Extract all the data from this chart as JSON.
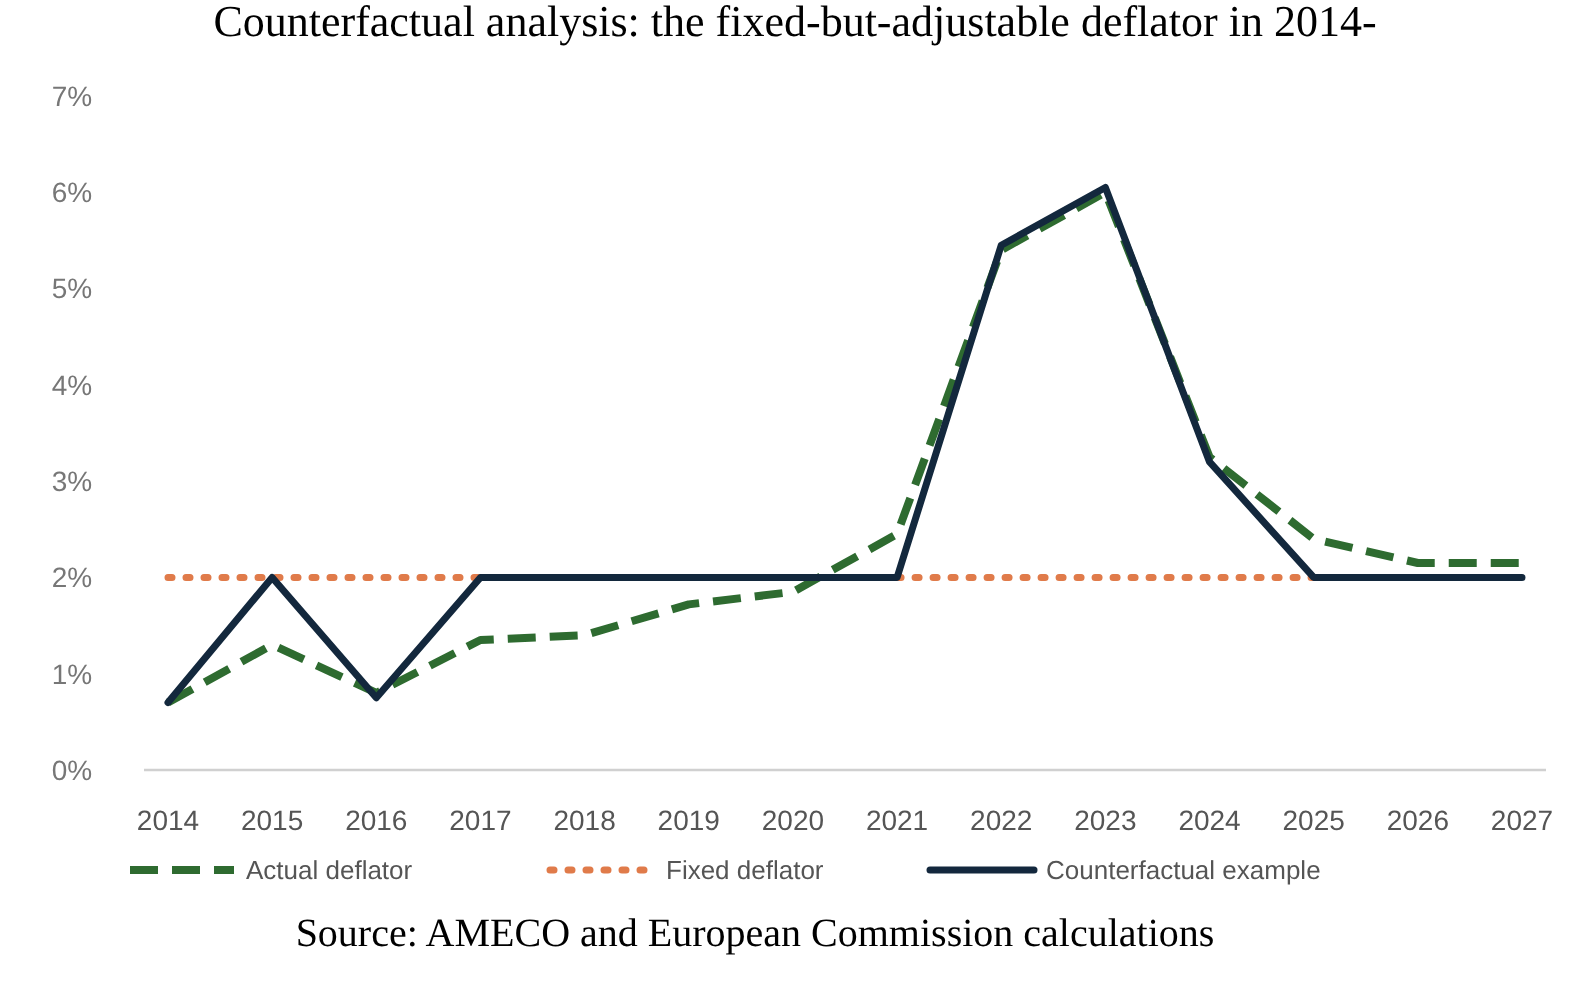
{
  "chart_data": {
    "type": "line",
    "title": "Counterfactual analysis: the fixed-but-adjustable deflator in 2014-",
    "categories": [
      "2014",
      "2015",
      "2016",
      "2017",
      "2018",
      "2019",
      "2020",
      "2021",
      "2022",
      "2023",
      "2024",
      "2025",
      "2026",
      "2027"
    ],
    "series": [
      {
        "name": "Actual deflator",
        "color": "#2e6b30",
        "line_style": "dashed",
        "values": [
          0.7,
          1.3,
          0.8,
          1.35,
          1.4,
          1.72,
          1.85,
          2.45,
          5.4,
          6.0,
          3.25,
          2.4,
          2.15,
          2.15
        ]
      },
      {
        "name": "Fixed deflator",
        "color": "#e07b4a",
        "line_style": "dotted",
        "values": [
          2,
          2,
          2,
          2,
          null,
          null,
          null,
          2,
          2,
          2,
          2,
          2,
          null,
          null
        ]
      },
      {
        "name": "Counterfactual example",
        "color": "#13283d",
        "line_style": "solid",
        "values": [
          0.7,
          2,
          0.75,
          2,
          2,
          2,
          2,
          2,
          5.45,
          6.05,
          3.2,
          2,
          2,
          2
        ]
      }
    ],
    "ylim": [
      0,
      7
    ],
    "yticks": [
      {
        "value": 0,
        "label": "0%"
      },
      {
        "value": 1,
        "label": "1%"
      },
      {
        "value": 2,
        "label": "2%"
      },
      {
        "value": 3,
        "label": "3%"
      },
      {
        "value": 4,
        "label": "4%"
      },
      {
        "value": 5,
        "label": "5%"
      },
      {
        "value": 6,
        "label": "6%"
      },
      {
        "value": 7,
        "label": "7%"
      }
    ],
    "grid": false,
    "legend": "bottom",
    "marker": "none",
    "annotations": [
      "Source: AMECO and European Commission calculations"
    ]
  }
}
